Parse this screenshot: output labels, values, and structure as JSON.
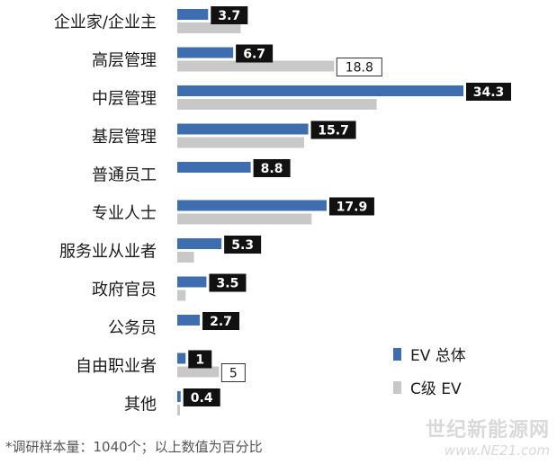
{
  "chart_data": {
    "type": "bar",
    "orientation": "horizontal",
    "categories": [
      "企业家/企业主",
      "高层管理",
      "中层管理",
      "基层管理",
      "普通员工",
      "专业人士",
      "服务业从业者",
      "政府官员",
      "公务员",
      "自由职业者",
      "其他"
    ],
    "series": [
      {
        "name": "EV 总体",
        "color": "#3f6eb0",
        "values": [
          3.7,
          6.7,
          34.3,
          15.7,
          8.8,
          17.9,
          5.3,
          3.5,
          2.7,
          1,
          0.4
        ],
        "labels": [
          "3.7",
          "6.7",
          "34.3",
          "15.7",
          "8.8",
          "17.9",
          "5.3",
          "3.5",
          "2.7",
          "1",
          "0.4"
        ]
      },
      {
        "name": "C级 EV",
        "color": "#c8c8c8",
        "values": [
          7.6,
          18.8,
          23.9,
          15.2,
          0,
          16.1,
          2.0,
          1.0,
          0,
          5,
          0.2
        ],
        "labels": [
          "",
          "18.8",
          "",
          "",
          "",
          "",
          "",
          "",
          "",
          "5",
          ""
        ]
      }
    ],
    "xlim": [
      0,
      40
    ],
    "grid": false,
    "legend_position": "bottom-right"
  },
  "footnote": "*调研样本量：1040个；以上数值为百分比",
  "watermark": {
    "name": "世纪新能源网",
    "url": "www.NE21.com"
  }
}
